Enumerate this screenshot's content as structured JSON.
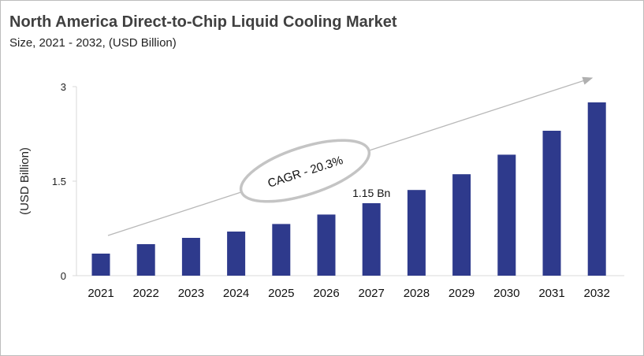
{
  "title": "North America Direct-to-Chip Liquid Cooling Market",
  "subtitle": "Size, 2021 - 2032, (USD Billion)",
  "chart_data": {
    "type": "bar",
    "title": "North America Direct-to-Chip Liquid Cooling Market",
    "subtitle": "Size, 2021 - 2032, (USD Billion)",
    "xlabel": "",
    "ylabel": "(USD Billion)",
    "categories": [
      "2021",
      "2022",
      "2023",
      "2024",
      "2025",
      "2026",
      "2027",
      "2028",
      "2029",
      "2030",
      "2031",
      "2032"
    ],
    "values": [
      0.35,
      0.5,
      0.6,
      0.7,
      0.82,
      0.97,
      1.15,
      1.36,
      1.61,
      1.92,
      2.3,
      2.75
    ],
    "ylim": [
      0,
      3
    ],
    "yticks": [
      "0",
      "1.5",
      "3"
    ],
    "grid": false,
    "bar_color": "#2e3a8c",
    "annotations": {
      "data_label": {
        "category": "2027",
        "text": "1.15 Bn"
      },
      "cagr": "CAGR - 20.3%"
    }
  }
}
